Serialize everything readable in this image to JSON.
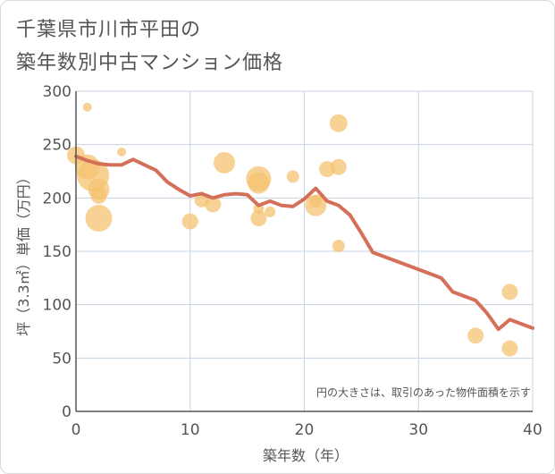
{
  "chart_data": {
    "type": "scatter",
    "title_lines": [
      "千葉県市川市平田の",
      "築年数別中古マンション価格"
    ],
    "xlabel": "築年数（年）",
    "ylabel": "坪（3.3㎡）単価（万円）",
    "xlim": [
      0,
      40
    ],
    "ylim": [
      0,
      300
    ],
    "x_ticks": [
      0,
      10,
      20,
      30,
      40
    ],
    "y_ticks": [
      0,
      50,
      100,
      150,
      200,
      250,
      300
    ],
    "grid": true,
    "note": "円の大きさは、取引のあった物件面積を示す",
    "colors": {
      "bubble": "#f5c270",
      "trend": "#d4705a",
      "grid": "#c5d3e0",
      "axis": "#555555"
    },
    "bubbles": [
      {
        "x": 0,
        "y": 240,
        "size": 10
      },
      {
        "x": 1,
        "y": 285,
        "size": 5
      },
      {
        "x": 1,
        "y": 229,
        "size": 14
      },
      {
        "x": 1.5,
        "y": 221,
        "size": 18
      },
      {
        "x": 2,
        "y": 208,
        "size": 12
      },
      {
        "x": 2,
        "y": 202,
        "size": 9
      },
      {
        "x": 2,
        "y": 181,
        "size": 15
      },
      {
        "x": 4,
        "y": 243,
        "size": 5
      },
      {
        "x": 10,
        "y": 178,
        "size": 9
      },
      {
        "x": 11,
        "y": 198,
        "size": 8
      },
      {
        "x": 12,
        "y": 194,
        "size": 9
      },
      {
        "x": 13,
        "y": 233,
        "size": 12
      },
      {
        "x": 16,
        "y": 218,
        "size": 14
      },
      {
        "x": 16,
        "y": 214,
        "size": 12
      },
      {
        "x": 16,
        "y": 190,
        "size": 6
      },
      {
        "x": 16,
        "y": 181,
        "size": 9
      },
      {
        "x": 17,
        "y": 187,
        "size": 6
      },
      {
        "x": 19,
        "y": 220,
        "size": 7
      },
      {
        "x": 21,
        "y": 197,
        "size": 7
      },
      {
        "x": 21,
        "y": 193,
        "size": 12
      },
      {
        "x": 22,
        "y": 227,
        "size": 9
      },
      {
        "x": 23,
        "y": 270,
        "size": 10
      },
      {
        "x": 23,
        "y": 229,
        "size": 9
      },
      {
        "x": 23,
        "y": 155,
        "size": 7
      },
      {
        "x": 35,
        "y": 71,
        "size": 9
      },
      {
        "x": 38,
        "y": 112,
        "size": 9
      },
      {
        "x": 38,
        "y": 59,
        "size": 9
      }
    ],
    "trend": {
      "x": [
        0,
        1,
        2,
        3,
        4,
        5,
        6,
        7,
        8,
        9,
        10,
        11,
        12,
        13,
        14,
        15,
        16,
        17,
        18,
        19,
        20,
        21,
        22,
        23,
        24,
        25,
        26,
        27,
        28,
        29,
        30,
        31,
        32,
        33,
        34,
        35,
        36,
        37,
        38,
        39,
        40
      ],
      "y": [
        239,
        235,
        232,
        231,
        231,
        236,
        231,
        226,
        215,
        208,
        202,
        204,
        200,
        203,
        204,
        203,
        193,
        197,
        193,
        192,
        199,
        209,
        197,
        193,
        184,
        167,
        149,
        145,
        141,
        137,
        133,
        129,
        125,
        112,
        108,
        104,
        92,
        77,
        86,
        82,
        78
      ]
    }
  }
}
